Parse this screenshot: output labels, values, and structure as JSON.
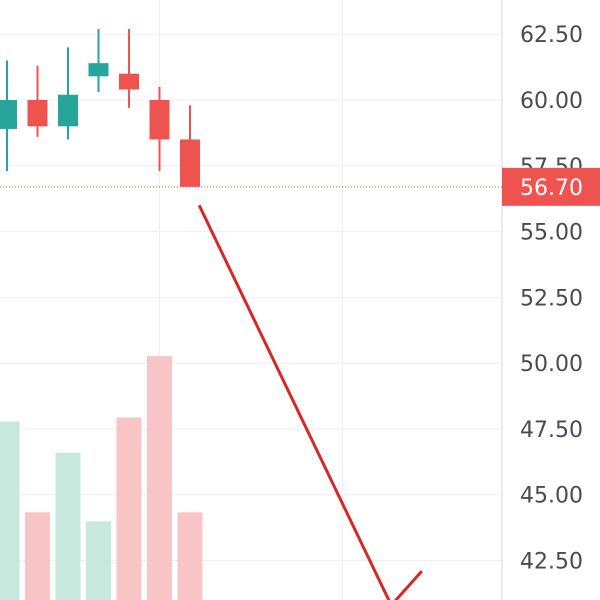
{
  "colors": {
    "up": "#26a69a",
    "down": "#ef5350",
    "up_volume": "#c7e8dd",
    "down_volume": "#f8c4c6",
    "grid": "#eeeef2",
    "axis_line": "#d8d8dd",
    "price_line": "#ef5350",
    "price_tag_bg": "#ef5350",
    "drawing_line": "#d62828"
  },
  "chart_data": {
    "type": "candlestick",
    "price_axis": {
      "side": "right",
      "ylim": [
        41.0,
        63.8
      ],
      "ticks": [
        62.5,
        60.0,
        57.5,
        55.0,
        52.5,
        50.0,
        47.5,
        45.0,
        42.5
      ],
      "tick_labels": [
        "62.50",
        "60.00",
        "57.50",
        "55.00",
        "52.50",
        "50.00",
        "47.50",
        "45.00",
        "42.50"
      ]
    },
    "last_price": {
      "value": 56.7,
      "label": "56.70"
    },
    "candles": [
      {
        "open": 58.9,
        "high": 61.5,
        "low": 57.3,
        "close": 60.0,
        "direction": "up"
      },
      {
        "open": 60.0,
        "high": 61.3,
        "low": 58.6,
        "close": 59.0,
        "direction": "down"
      },
      {
        "open": 59.0,
        "high": 62.0,
        "low": 58.5,
        "close": 60.2,
        "direction": "up"
      },
      {
        "open": 60.9,
        "high": 62.7,
        "low": 60.3,
        "close": 61.4,
        "direction": "up"
      },
      {
        "open": 61.0,
        "high": 62.7,
        "low": 59.7,
        "close": 60.4,
        "direction": "down"
      },
      {
        "open": 60.0,
        "high": 60.5,
        "low": 57.3,
        "close": 58.5,
        "direction": "down"
      },
      {
        "open": 58.5,
        "high": 59.8,
        "low": 56.7,
        "close": 56.7,
        "direction": "down"
      }
    ],
    "volume": {
      "scale_max": 250,
      "values": [
        177,
        87,
        146,
        78,
        181,
        242,
        87
      ]
    },
    "drawing": {
      "type": "trend-line",
      "points": [
        {
          "candle_index": 6.3,
          "price": 56.0
        },
        {
          "candle_index": 12.6,
          "price": 40.8
        },
        {
          "candle_index": 13.6,
          "price": 42.1
        }
      ]
    }
  }
}
